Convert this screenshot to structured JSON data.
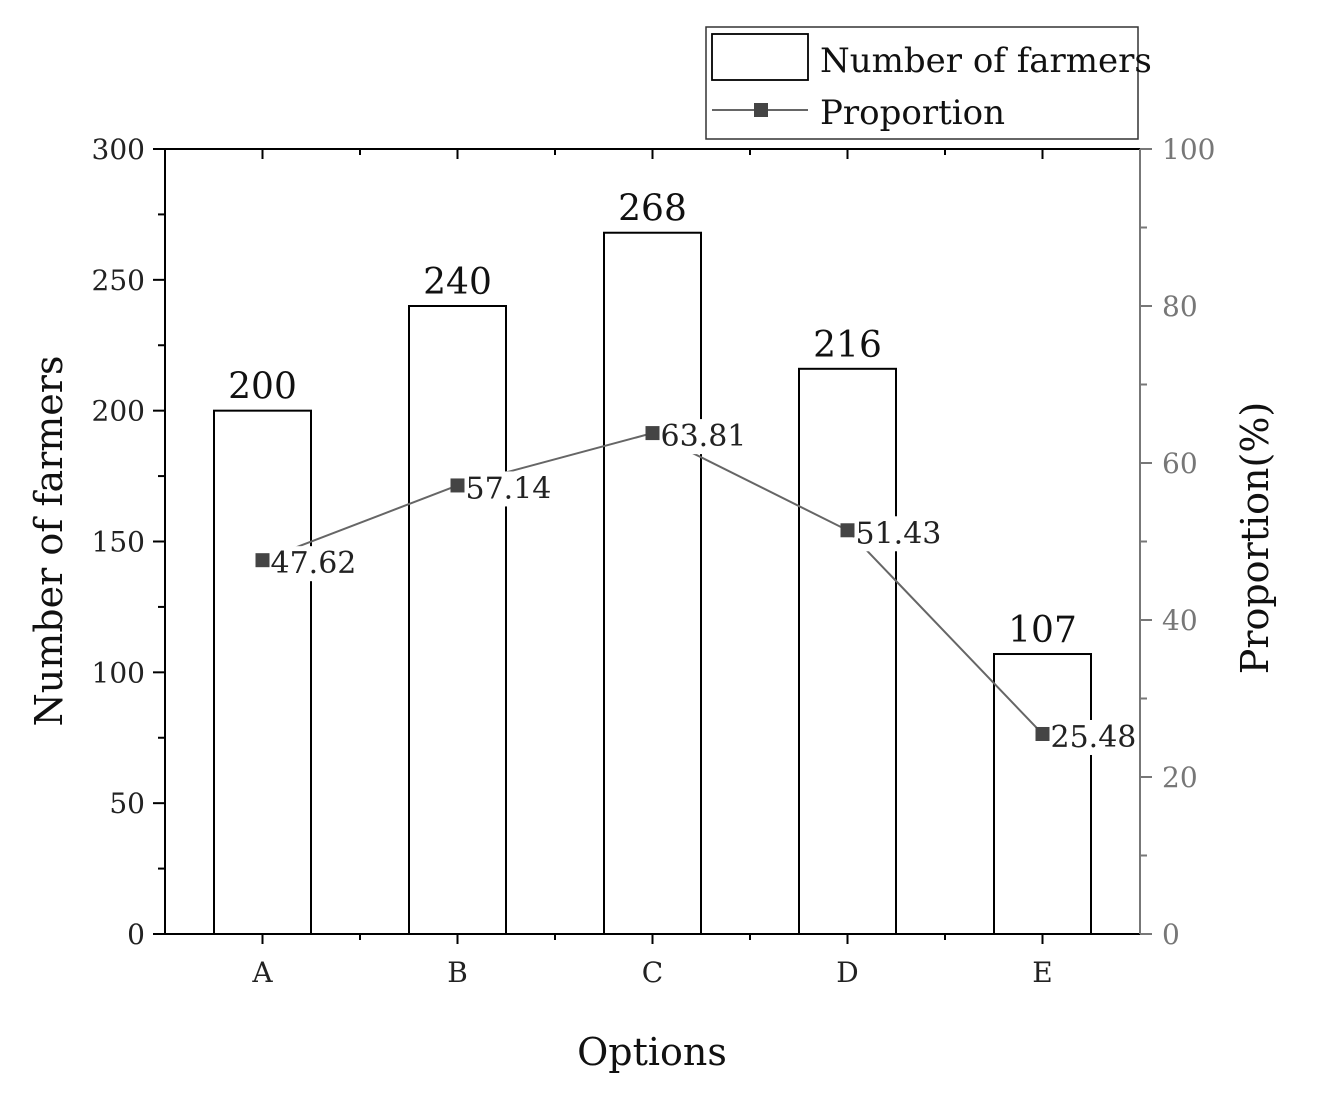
{
  "chart_data": {
    "type": "bar",
    "categories": [
      "A",
      "B",
      "C",
      "D",
      "E"
    ],
    "series": [
      {
        "name": "Number of farmers",
        "type": "bar",
        "axis": "left",
        "values": [
          200,
          240,
          268,
          216,
          107
        ]
      },
      {
        "name": "Proportion",
        "type": "line",
        "axis": "right",
        "values": [
          47.62,
          57.14,
          63.81,
          51.43,
          25.48
        ]
      }
    ],
    "bar_labels": [
      "200",
      "240",
      "268",
      "216",
      "107"
    ],
    "point_labels": [
      "47.62",
      "57.14",
      "63.81",
      "51.43",
      "25.48"
    ],
    "xlabel": "Options",
    "ylabel": "Number of farmers",
    "y2label": "Proportion(%)",
    "ylim": [
      0,
      300
    ],
    "y2lim": [
      0,
      100
    ],
    "yticks": [
      "0",
      "50",
      "100",
      "150",
      "200",
      "250",
      "300"
    ],
    "y2ticks": [
      "0",
      "20",
      "40",
      "60",
      "80",
      "100"
    ],
    "grid": false,
    "legend_position": "top-right",
    "colors": {
      "bar_fill": "#ffffff",
      "bar_stroke": "#000000",
      "line": "#666666",
      "marker": "#444444",
      "right_axis": "#777777"
    }
  }
}
